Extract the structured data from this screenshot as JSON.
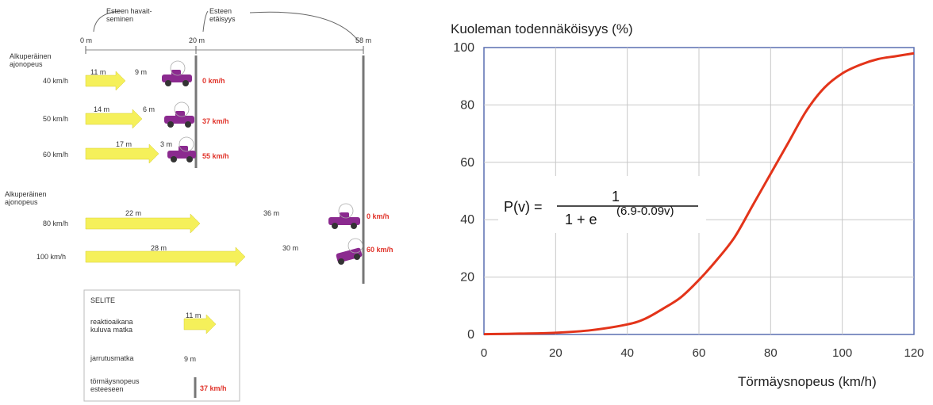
{
  "diagram": {
    "header": {
      "obstacle_observation": "Esteen havait-\nseminen",
      "obstacle_distance": "Esteen\netäisyys",
      "m0": "0 m",
      "m20": "20 m",
      "m58": "58 m"
    },
    "group_label_1": "Alkuperäinen\najonopeus",
    "group_label_2": "Alkuperäinen\najonopeus",
    "rows": [
      {
        "speed": "40 km/h",
        "reaction": "11 m",
        "braking": "9 m",
        "impact": "0 km/h"
      },
      {
        "speed": "50 km/h",
        "reaction": "14 m",
        "braking": "6 m",
        "impact": "37 km/h"
      },
      {
        "speed": "60 km/h",
        "reaction": "17 m",
        "braking": "3 m",
        "impact": "55 km/h"
      },
      {
        "speed": "80 km/h",
        "reaction": "22 m",
        "braking": "36 m",
        "impact": "0 km/h"
      },
      {
        "speed": "100 km/h",
        "reaction": "28 m",
        "braking": "30 m",
        "impact": "60 km/h"
      }
    ],
    "legend": {
      "title": "SELITE",
      "reaction_label": "reaktioaikana\nkuluva matka",
      "reaction_value": "11 m",
      "braking_label": "jarrutusmatka",
      "braking_value": "9 m",
      "impact_label": "törmäysnopeus\nesteeseen",
      "impact_value": "37 km/h"
    },
    "colors": {
      "arrow": "#f5f05a",
      "car": "#8b2a8f",
      "impact_text": "#e0332a",
      "pole": "#888888"
    },
    "icons": [
      "car-icon",
      "obstacle-pole-icon"
    ]
  },
  "chart_data": {
    "type": "line",
    "title": "Kuoleman todennäköisyys (%)",
    "xlabel": "Törmäysnopeus (km/h)",
    "ylabel": "",
    "xlim": [
      0,
      120
    ],
    "ylim": [
      0,
      100
    ],
    "xticks": [
      "0",
      "20",
      "40",
      "60",
      "80",
      "100",
      "120"
    ],
    "yticks": [
      "0",
      "20",
      "40",
      "60",
      "80",
      "100"
    ],
    "grid": true,
    "line_color": "#e3341a",
    "formula": {
      "lhs": "P(v) =",
      "numerator": "1",
      "denominator": "1 + e",
      "exponent": "(6.9-0.09v)"
    },
    "series": [
      {
        "x": [
          0,
          10,
          20,
          30,
          40,
          45,
          50,
          55,
          60,
          65,
          70,
          75,
          80,
          85,
          90,
          95,
          100,
          105,
          110,
          115,
          120
        ],
        "y": [
          0.1,
          0.3,
          0.6,
          1.5,
          3.5,
          5.5,
          9,
          13,
          19,
          26,
          34,
          45,
          56,
          67,
          78,
          86,
          91,
          94,
          96,
          97,
          98
        ]
      }
    ]
  }
}
